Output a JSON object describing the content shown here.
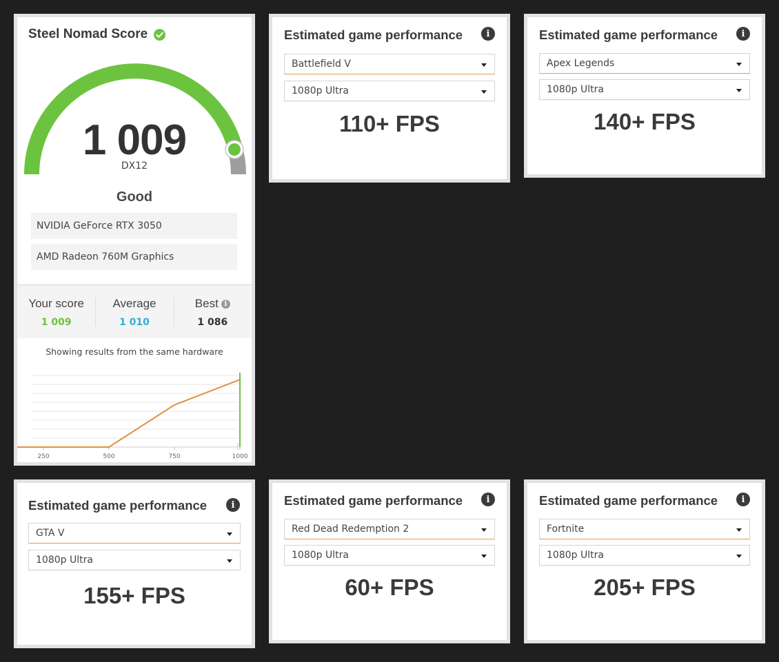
{
  "score_card": {
    "title": "Steel Nomad Score",
    "score": "1 009",
    "api": "DX12",
    "rating": "Good",
    "hardware": [
      "NVIDIA GeForce RTX 3050",
      "AMD Radeon 760M Graphics"
    ],
    "stats": {
      "your_score_label": "Your score",
      "your_score": "1 009",
      "average_label": "Average",
      "average": "1 010",
      "best_label": "Best",
      "best": "1 086"
    },
    "showing_text": "Showing results from the same hardware",
    "colors": {
      "gauge": "#6cc340",
      "gauge_remainder": "#9e9e9e",
      "your_score": "#6cc340",
      "average": "#2fb0d8",
      "chart_line": "#e0913a",
      "marker": "#6cc340"
    }
  },
  "chart_data": {
    "type": "line",
    "x": [
      100,
      500,
      750,
      1000
    ],
    "y": [
      0,
      0,
      5,
      8
    ],
    "xticks": [
      "250",
      "500",
      "750",
      "1000"
    ],
    "xlim": [
      150,
      1250
    ],
    "ylim": [
      0,
      8.5
    ],
    "marker_x": 1000,
    "grid": true
  },
  "perf_cards": [
    {
      "title": "Estimated game performance",
      "game": "Battlefield V",
      "preset": "1080p Ultra",
      "fps": "110+ FPS"
    },
    {
      "title": "Estimated game performance",
      "game": "Apex Legends",
      "preset": "1080p Ultra",
      "fps": "140+ FPS"
    },
    {
      "title": "Estimated game performance",
      "game": "GTA V",
      "preset": "1080p Ultra",
      "fps": "155+ FPS"
    },
    {
      "title": "Estimated game performance",
      "game": "Red Dead Redemption 2",
      "preset": "1080p Ultra",
      "fps": "60+ FPS"
    },
    {
      "title": "Estimated game performance",
      "game": "Fortnite",
      "preset": "1080p Ultra",
      "fps": "205+ FPS"
    }
  ],
  "info_glyph": "i"
}
